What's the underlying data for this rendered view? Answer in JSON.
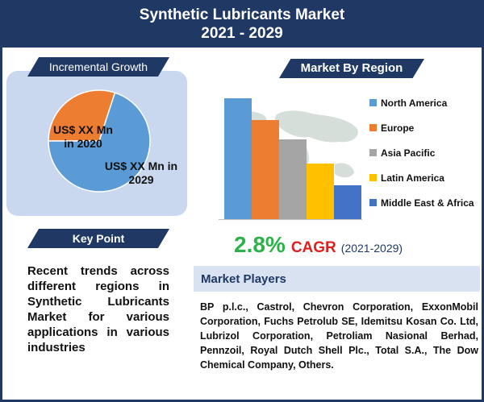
{
  "header": {
    "title_line1": "Synthetic Lubricants Market",
    "title_line2": "2021 - 2029"
  },
  "incremental": {
    "ribbon_label": "Incremental Growth",
    "label_2020": "US$ XX Mn in 2020",
    "label_2029": "US$ XX Mn in 2029"
  },
  "key_point": {
    "ribbon_label": "Key Point",
    "text": "Recent trends across different regions in Synthetic Lubricants Market for various applications in various industries"
  },
  "region": {
    "ribbon_label": "Market By Region"
  },
  "cagr": {
    "value": "2.8%",
    "label": "CAGR",
    "years": "(2021-2029)"
  },
  "players": {
    "title": "Market Players",
    "text": "BP p.l.c., Castrol, Chevron Corporation, ExxonMobil Corporation, Fuchs Petrolub SE, Idemitsu Kosan Co. Ltd, Lubrizol Corporation, Petroliam Nasional Berhad, Pennzoil, Royal Dutch Shell Plc., Total S.A., The Dow Chemical Company, Others."
  },
  "colors": {
    "navy": "#1f3864",
    "panel": "#c9d8ef",
    "pie_2020": "#ed7d31",
    "pie_2029": "#5b9bd5",
    "cagr_green": "#2db24a",
    "cagr_red": "#e02020"
  },
  "chart_data": [
    {
      "type": "pie",
      "labels": [
        "US$ XX Mn in 2020",
        "US$ XX Mn in 2029"
      ],
      "values": [
        30,
        70
      ],
      "colors": [
        "#ed7d31",
        "#5b9bd5"
      ]
    },
    {
      "type": "bar",
      "categories": [
        "North America",
        "Europe",
        "Asia Pacific",
        "Latin America",
        "Middle East & Africa"
      ],
      "values": [
        100,
        82,
        66,
        46,
        28
      ],
      "colors": [
        "#5b9bd5",
        "#ed7d31",
        "#a5a5a5",
        "#ffc000",
        "#4472c4"
      ],
      "ylim": [
        0,
        100
      ],
      "legend": "right",
      "grid": false
    }
  ]
}
